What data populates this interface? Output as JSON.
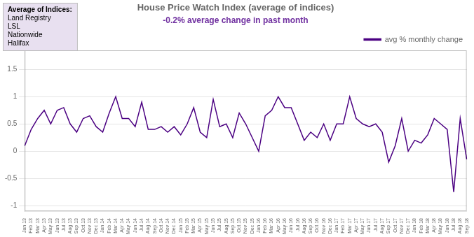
{
  "chart_data": {
    "type": "line",
    "title": "House Price Watch Index (average of indices)",
    "subtitle": "-0.2% average change in past month",
    "categories": [
      "Jan 13",
      "Feb 13",
      "Mar 13",
      "Apr 13",
      "May 13",
      "Jun 13",
      "Jul 13",
      "Aug 13",
      "Sep 13",
      "Oct 13",
      "Nov 13",
      "Dec 13",
      "Jan 14",
      "Feb 14",
      "Mar 14",
      "Apr 14",
      "May 14",
      "Jun 14",
      "Jul 14",
      "Aug 14",
      "Sep 14",
      "Oct 14",
      "Nov 14",
      "Dec 14",
      "Jan 15",
      "Feb 15",
      "Mar 15",
      "Apr 15",
      "May 15",
      "Jun 15",
      "Jul 15",
      "Aug 15",
      "Sep 15",
      "Oct 15",
      "Nov 15",
      "Dec 15",
      "Jan 16",
      "Feb 16",
      "Mar 16",
      "Apr 16",
      "May 16",
      "Jun 16",
      "Jul 16",
      "Aug 16",
      "Sep 16",
      "Oct 16",
      "Nov 16",
      "Dec 16",
      "Jan 17",
      "Feb 17",
      "Mar 17",
      "Apr 17",
      "May 17",
      "Jun 17",
      "Jul 17",
      "Aug 17",
      "Sep 17",
      "Oct 17",
      "Nov 17",
      "Dec 17",
      "Jan 18",
      "Feb 18",
      "Mar 18",
      "Apr 18",
      "May 18",
      "Jun 18",
      "Jul 18",
      "Aug 18",
      "Sep 18"
    ],
    "series": [
      {
        "name": "avg % monthly change",
        "color": "#4b0082",
        "values": [
          0.1,
          0.4,
          0.6,
          0.75,
          0.5,
          0.75,
          0.8,
          0.5,
          0.35,
          0.6,
          0.65,
          0.45,
          0.35,
          0.7,
          1.0,
          0.6,
          0.6,
          0.45,
          0.9,
          0.4,
          0.4,
          0.45,
          0.35,
          0.45,
          0.3,
          0.5,
          0.8,
          0.35,
          0.25,
          0.95,
          0.45,
          0.5,
          0.25,
          0.7,
          0.5,
          0.25,
          0.0,
          0.65,
          0.75,
          1.0,
          0.8,
          0.8,
          0.5,
          0.2,
          0.35,
          0.25,
          0.5,
          0.2,
          0.5,
          0.5,
          1.0,
          0.6,
          0.5,
          0.45,
          0.5,
          0.35,
          -0.2,
          0.1,
          0.6,
          0.0,
          0.2,
          0.15,
          0.3,
          0.6,
          0.5,
          0.4,
          -0.75,
          0.6,
          -0.15
        ]
      }
    ],
    "ylim": [
      -1.1,
      1.85
    ],
    "yticks": [
      -1,
      -0.5,
      0,
      0.5,
      1,
      1.5
    ],
    "grid": true,
    "legend": "upper right",
    "annotations": [
      "Average of Indices:",
      "Land Registry",
      "LSL",
      "Nationwide",
      "Halifax"
    ]
  }
}
